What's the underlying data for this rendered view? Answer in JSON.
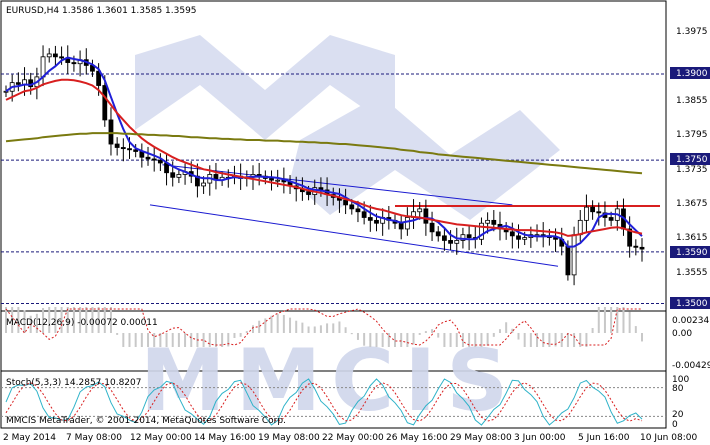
{
  "main_panel": {
    "title": "EURUSD,H4  1.3586  1.3601  1.3585  1.3595",
    "price_labels": [
      "1.3975",
      "1.3855",
      "1.3795",
      "1.3735",
      "1.3675",
      "1.3615",
      "1.3555"
    ],
    "hline_labels": [
      "1.3900",
      "1.3750",
      "1.3590",
      "1.3500"
    ]
  },
  "macd_panel": {
    "title": "MACD(12,26,9) -0.00072 0.00011",
    "axis_labels": [
      "0.00234",
      "0.00",
      "-0.00429"
    ]
  },
  "stoch_panel": {
    "title": "Stoch(5,3,3) 14.2857 10.8207",
    "axis_labels": [
      "100",
      "80",
      "20",
      "0"
    ],
    "copyright": "MMCIS MetaTrader, © 2001-2014, MetaQuotes Software Corp."
  },
  "time_axis": {
    "labels": [
      "2 May 2014",
      "7 May 08:00",
      "12 May 00:00",
      "14 May 16:00",
      "19 May 08:00",
      "22 May 00:00",
      "26 May 16:00",
      "29 May 08:00",
      "3 Jun 00:00",
      "5 Jun 16:00",
      "10 Jun 08:00"
    ]
  },
  "watermark": {
    "text": "MMCIS"
  },
  "colors": {
    "ma_fast": "#1f1fd8",
    "ma_mid": "#d81f1f",
    "ma_slow": "#7a7a10",
    "channel": "#1a1ad0",
    "resistance": "#d81f1f",
    "hline": "#1a1a7a"
  },
  "chart_data": [
    {
      "type": "line",
      "title": "EURUSD,H4",
      "ylim": [
        1.348,
        1.4
      ],
      "yticks": [
        1.3975,
        1.3855,
        1.3795,
        1.3735,
        1.3675,
        1.3615,
        1.3555
      ],
      "levels": [
        1.39,
        1.375,
        1.359,
        1.35
      ],
      "ohlc_last": {
        "open": 1.3586,
        "high": 1.3601,
        "low": 1.3585,
        "close": 1.3595
      },
      "series": [
        {
          "values": [
            1.387,
            1.3885,
            1.3882,
            1.389,
            1.3878,
            1.3895,
            1.393,
            1.3935,
            1.393,
            1.3928,
            1.392,
            1.3918,
            1.3925,
            1.3915,
            1.3905,
            1.388,
            1.382,
            1.3778,
            1.3772,
            1.377,
            1.3768,
            1.3765,
            1.3755,
            1.3752,
            1.375,
            1.3745,
            1.3728,
            1.372,
            1.3725,
            1.373,
            1.3722,
            1.3705,
            1.371,
            1.3725,
            1.3715,
            1.372,
            1.372,
            1.3722,
            1.3718,
            1.372,
            1.3725,
            1.3722,
            1.3718,
            1.3715,
            1.3715,
            1.3712,
            1.3705,
            1.37,
            1.3695,
            1.369,
            1.3702,
            1.3698,
            1.369,
            1.3685,
            1.368,
            1.3672,
            1.3665,
            1.366,
            1.365,
            1.3645,
            1.364,
            1.365,
            1.3645,
            1.364,
            1.363,
            1.365,
            1.366,
            1.3665,
            1.364,
            1.3625,
            1.3618,
            1.361,
            1.3605,
            1.361,
            1.362,
            1.3615,
            1.3612,
            1.364,
            1.3645,
            1.3638,
            1.363,
            1.3625,
            1.3618,
            1.3612,
            1.3615,
            1.362,
            1.362,
            1.3618,
            1.3615,
            1.3612,
            1.36,
            1.355,
            1.362,
            1.3645,
            1.3668,
            1.366,
            1.3658,
            1.365,
            1.3645,
            1.3665,
            1.363,
            1.36,
            1.3598,
            1.3595
          ]
        },
        {
          "values": [
            1.3855,
            1.386,
            1.3865,
            1.387,
            1.3872,
            1.3876,
            1.3882,
            1.3885,
            1.3888,
            1.389,
            1.389,
            1.3889,
            1.3887,
            1.3884,
            1.388,
            1.3872,
            1.386,
            1.3846,
            1.3832,
            1.382,
            1.3808,
            1.3798,
            1.3788,
            1.378,
            1.3773,
            1.3767,
            1.3761,
            1.3755,
            1.375,
            1.3746,
            1.3742,
            1.3738,
            1.3734,
            1.3732,
            1.3729,
            1.3727,
            1.3725,
            1.3723,
            1.3721,
            1.3719,
            1.3717,
            1.3715,
            1.3713,
            1.3711,
            1.3709,
            1.3707,
            1.3705,
            1.3703,
            1.37,
            1.3697,
            1.3695,
            1.3693,
            1.369,
            1.3688,
            1.3685,
            1.3682,
            1.3679,
            1.3676,
            1.3672,
            1.3668,
            1.3665,
            1.3663,
            1.366,
            1.3657,
            1.3654,
            1.3652,
            1.3651,
            1.365,
            1.3648,
            1.3646,
            1.3644,
            1.3642,
            1.364,
            1.3638,
            1.3637,
            1.3636,
            1.3635,
            1.3634,
            1.3633,
            1.3632,
            1.3631,
            1.363,
            1.3629,
            1.3628,
            1.3628,
            1.3628,
            1.3627,
            1.3626,
            1.3625,
            1.3624,
            1.3622,
            1.3618,
            1.3619,
            1.3621,
            1.3624,
            1.3626,
            1.3628,
            1.363,
            1.3632,
            1.3633,
            1.3631,
            1.3627,
            1.3624,
            1.3622
          ]
        },
        {
          "values": [
            1.3783,
            1.3784,
            1.3785,
            1.3786,
            1.3787,
            1.3788,
            1.379,
            1.3791,
            1.3792,
            1.3793,
            1.3794,
            1.3795,
            1.3796,
            1.3796,
            1.3797,
            1.3797,
            1.3797,
            1.3797,
            1.3797,
            1.3796,
            1.3796,
            1.3795,
            1.3795,
            1.3794,
            1.3794,
            1.3793,
            1.3793,
            1.3792,
            1.3792,
            1.3791,
            1.379,
            1.379,
            1.3789,
            1.3788,
            1.3788,
            1.3787,
            1.3787,
            1.3786,
            1.3786,
            1.3785,
            1.3785,
            1.3785,
            1.3784,
            1.3784,
            1.3784,
            1.3783,
            1.3783,
            1.3782,
            1.3782,
            1.3781,
            1.3781,
            1.378,
            1.378,
            1.3779,
            1.3778,
            1.3778,
            1.3777,
            1.3776,
            1.3775,
            1.3774,
            1.3773,
            1.3772,
            1.3771,
            1.377,
            1.3768,
            1.3767,
            1.3766,
            1.3764,
            1.3763,
            1.3762,
            1.376,
            1.3759,
            1.3758,
            1.3757,
            1.3756,
            1.3755,
            1.3754,
            1.3753,
            1.3752,
            1.3751,
            1.375,
            1.3749,
            1.3748,
            1.3747,
            1.3746,
            1.3745,
            1.3744,
            1.3743,
            1.3742,
            1.3741,
            1.374,
            1.3739,
            1.3738,
            1.3737,
            1.3736,
            1.3735,
            1.3734,
            1.3733,
            1.3732,
            1.3731,
            1.373,
            1.3729,
            1.3728,
            1.3727
          ]
        }
      ]
    },
    {
      "type": "bar",
      "title": "MACD(12,26,9)",
      "ylim": [
        -0.00429,
        0.00234
      ],
      "values": [
        -0.00072
      ],
      "signal": [
        0.00011
      ]
    },
    {
      "type": "line",
      "title": "Stoch(5,3,3)",
      "ylim": [
        0,
        100
      ],
      "levels": [
        80,
        20
      ],
      "series": [
        {
          "values": [
            14.2857
          ]
        },
        {
          "values": [
            10.8207
          ]
        }
      ]
    }
  ]
}
